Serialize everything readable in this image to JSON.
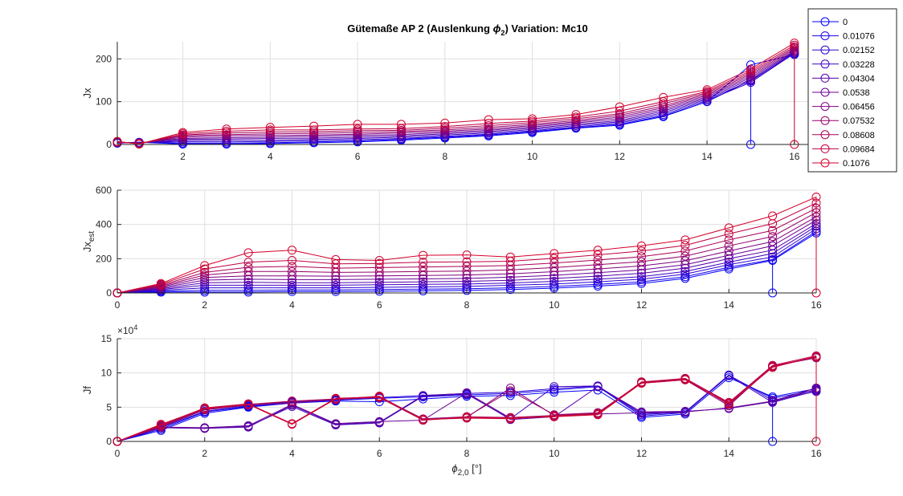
{
  "figure": {
    "title_main": "Gütemaße AP 2 (Auslenkung ",
    "title_sym": "ϕ",
    "title_sub": "2",
    "title_tail": ")  Variation: Mc10"
  },
  "legend": {
    "entries": [
      "0",
      "0.01076",
      "0.02152",
      "0.03228",
      "0.04304",
      "0.0538",
      "0.06456",
      "0.07532",
      "0.08608",
      "0.09684",
      "0.1076"
    ],
    "colors": [
      "#0000ff",
      "#1500ea",
      "#2b00d4",
      "#4000bf",
      "#5500aa",
      "#6a0095",
      "#800080",
      "#95006a",
      "#aa0055",
      "#bf0040",
      "#d4002b"
    ]
  },
  "chart_data": [
    {
      "type": "line",
      "ylabel": "Jx",
      "xlim": [
        0.5,
        16.5
      ],
      "ylim": [
        0,
        240
      ],
      "x_ticks": [
        2,
        4,
        6,
        8,
        10,
        12,
        14,
        16
      ],
      "y_ticks": [
        0,
        100,
        200
      ],
      "grid": true,
      "marker": "circle",
      "x": [
        0.5,
        1,
        2,
        3,
        4,
        5,
        6,
        7,
        8,
        9,
        10,
        11,
        12,
        13,
        14,
        15,
        16
      ],
      "series": [
        {
          "name": "0",
          "values": [
            3,
            5,
            1,
            1,
            2,
            4,
            6,
            10,
            15,
            20,
            28,
            38,
            45,
            65,
            100,
            186,
            210
          ],
          "drop_at": 15
        },
        {
          "name": "0.01076",
          "values": [
            3,
            5,
            3,
            3,
            4,
            6,
            8,
            12,
            17,
            22,
            30,
            39,
            47,
            67,
            100,
            150,
            212
          ]
        },
        {
          "name": "0.02152",
          "values": [
            4,
            5,
            6,
            6,
            7,
            9,
            11,
            14,
            19,
            24,
            32,
            41,
            50,
            70,
            103,
            145,
            213
          ]
        },
        {
          "name": "0.03228",
          "values": [
            4,
            4,
            9,
            10,
            10,
            12,
            14,
            17,
            22,
            27,
            35,
            44,
            53,
            74,
            106,
            148,
            215
          ]
        },
        {
          "name": "0.04304",
          "values": [
            4,
            4,
            12,
            13,
            14,
            15,
            17,
            20,
            25,
            30,
            38,
            47,
            56,
            78,
            109,
            152,
            217
          ]
        },
        {
          "name": "0.0538",
          "values": [
            5,
            3,
            14,
            16,
            17,
            19,
            21,
            23,
            28,
            33,
            41,
            50,
            60,
            82,
            112,
            156,
            219
          ]
        },
        {
          "name": "0.06456",
          "values": [
            5,
            3,
            17,
            20,
            21,
            22,
            24,
            27,
            31,
            36,
            44,
            53,
            64,
            86,
            115,
            160,
            222
          ]
        },
        {
          "name": "0.07532",
          "values": [
            6,
            2,
            20,
            23,
            25,
            26,
            28,
            30,
            34,
            40,
            47,
            56,
            68,
            90,
            118,
            164,
            225
          ]
        },
        {
          "name": "0.08608",
          "values": [
            6,
            2,
            22,
            27,
            29,
            30,
            32,
            33,
            38,
            44,
            51,
            60,
            72,
            95,
            121,
            168,
            228
          ]
        },
        {
          "name": "0.09684",
          "values": [
            7,
            1,
            25,
            31,
            34,
            34,
            36,
            37,
            42,
            49,
            55,
            64,
            78,
            100,
            124,
            172,
            232
          ]
        },
        {
          "name": "0.1076",
          "values": [
            7,
            1,
            28,
            36,
            40,
            43,
            47,
            47,
            50,
            58,
            60,
            70,
            88,
            110,
            128,
            176,
            237
          ],
          "drop_at": 16
        }
      ]
    },
    {
      "type": "line",
      "ylabel": "Jx",
      "ylabel_sub": "est",
      "xlim": [
        0,
        16
      ],
      "ylim": [
        0,
        600
      ],
      "x_ticks": [
        0,
        2,
        4,
        6,
        8,
        10,
        12,
        14,
        16
      ],
      "y_ticks": [
        0,
        200,
        400,
        600
      ],
      "grid": true,
      "marker": "circle",
      "x": [
        0,
        1,
        2,
        3,
        4,
        5,
        6,
        7,
        8,
        9,
        10,
        11,
        12,
        13,
        14,
        15,
        16
      ],
      "series": [
        {
          "name": "0",
          "values": [
            0,
            5,
            5,
            5,
            8,
            8,
            10,
            12,
            15,
            20,
            28,
            40,
            55,
            85,
            140,
            190,
            350
          ],
          "drop_at": 15
        },
        {
          "name": "0.01076",
          "values": [
            0,
            10,
            15,
            15,
            18,
            18,
            20,
            22,
            25,
            30,
            38,
            50,
            65,
            95,
            150,
            195,
            360
          ]
        },
        {
          "name": "0.02152",
          "values": [
            0,
            15,
            30,
            30,
            30,
            30,
            33,
            35,
            38,
            45,
            52,
            65,
            80,
            110,
            165,
            210,
            375
          ]
        },
        {
          "name": "0.03228",
          "values": [
            0,
            20,
            45,
            45,
            45,
            45,
            48,
            50,
            52,
            58,
            68,
            80,
            95,
            125,
            180,
            230,
            390
          ]
        },
        {
          "name": "0.04304",
          "values": [
            0,
            25,
            60,
            62,
            60,
            60,
            62,
            65,
            68,
            74,
            85,
            98,
            115,
            145,
            200,
            250,
            405
          ]
        },
        {
          "name": "0.0538",
          "values": [
            0,
            30,
            75,
            80,
            78,
            78,
            80,
            82,
            85,
            92,
            103,
            118,
            135,
            165,
            220,
            275,
            425
          ]
        },
        {
          "name": "0.06456",
          "values": [
            0,
            35,
            90,
            100,
            100,
            98,
            100,
            102,
            105,
            112,
            124,
            140,
            158,
            188,
            245,
            300,
            445
          ]
        },
        {
          "name": "0.07532",
          "values": [
            0,
            40,
            105,
            125,
            125,
            120,
            122,
            125,
            128,
            135,
            148,
            165,
            183,
            215,
            275,
            330,
            470
          ]
        },
        {
          "name": "0.08608",
          "values": [
            0,
            45,
            120,
            150,
            155,
            145,
            148,
            152,
            155,
            160,
            175,
            192,
            212,
            245,
            310,
            365,
            495
          ]
        },
        {
          "name": "0.09684",
          "values": [
            0,
            50,
            140,
            180,
            190,
            170,
            172,
            180,
            182,
            185,
            202,
            222,
            245,
            278,
            345,
            405,
            525
          ]
        },
        {
          "name": "0.1076",
          "values": [
            0,
            55,
            160,
            235,
            250,
            195,
            190,
            220,
            222,
            210,
            230,
            250,
            275,
            310,
            380,
            450,
            560
          ],
          "drop_at": 16
        }
      ]
    },
    {
      "type": "line",
      "ylabel": "Jf",
      "xlabel_sym": "ϕ",
      "xlabel_sub": "2,0",
      "xlabel_tail": " [°]",
      "exponent_base": "×10",
      "exponent_power": "4",
      "xlim": [
        0,
        16
      ],
      "ylim": [
        0,
        15
      ],
      "x_ticks": [
        0,
        2,
        4,
        6,
        8,
        10,
        12,
        14,
        16
      ],
      "y_ticks": [
        0,
        5,
        10,
        15
      ],
      "grid": true,
      "marker": "circle",
      "x": [
        0,
        1,
        2,
        3,
        4,
        5,
        6,
        7,
        8,
        9,
        10,
        11,
        12,
        13,
        14,
        15,
        16
      ],
      "series": [
        {
          "name": "0",
          "values": [
            0,
            1.6,
            4.1,
            5.0,
            5.6,
            5.9,
            5.8,
            6.2,
            6.6,
            6.7,
            7.2,
            7.5,
            3.5,
            4.0,
            9.3,
            6.5,
            7.7
          ],
          "drop_at": 15
        },
        {
          "name": "0.01076",
          "values": [
            0,
            1.8,
            4.3,
            5.1,
            5.7,
            6.0,
            6.3,
            6.5,
            6.8,
            7.0,
            7.5,
            8.0,
            3.7,
            4.2,
            9.6,
            6.3,
            7.5
          ]
        },
        {
          "name": "0.02152",
          "values": [
            0,
            2.0,
            4.4,
            5.2,
            5.8,
            6.1,
            6.4,
            6.7,
            7.0,
            7.2,
            7.7,
            8.1,
            3.9,
            4.3,
            9.7,
            6.0,
            7.3
          ]
        },
        {
          "name": "0.03228",
          "values": [
            0,
            2.0,
            1.9,
            2.2,
            5.1,
            2.4,
            2.7,
            6.6,
            6.9,
            3.3,
            8.0,
            8.1,
            4.1,
            4.2,
            9.6,
            5.7,
            7.4
          ]
        },
        {
          "name": "0.04304",
          "values": [
            0,
            2.0,
            1.9,
            2.1,
            5.3,
            2.5,
            2.8,
            6.7,
            7.0,
            3.2,
            3.6,
            8.0,
            4.3,
            4.4,
            4.8,
            5.8,
            7.6
          ]
        },
        {
          "name": "0.0538",
          "values": [
            0,
            2.1,
            2.0,
            2.3,
            5.4,
            2.6,
            2.9,
            3.1,
            7.1,
            3.4,
            3.7,
            4.0,
            4.2,
            4.3,
            4.9,
            5.9,
            7.8
          ]
        },
        {
          "name": "0.06456",
          "values": [
            0,
            2.1,
            4.6,
            5.3,
            5.6,
            6.1,
            6.6,
            3.2,
            3.5,
            7.8,
            3.8,
            4.1,
            8.5,
            9.0,
            5.2,
            11.0,
            12.2
          ]
        },
        {
          "name": "0.07532",
          "values": [
            0,
            2.2,
            4.7,
            5.4,
            5.8,
            6.2,
            6.5,
            3.3,
            3.6,
            7.4,
            3.9,
            4.2,
            8.6,
            9.1,
            5.4,
            10.9,
            12.4
          ]
        },
        {
          "name": "0.08608",
          "values": [
            0,
            2.3,
            4.8,
            5.4,
            5.9,
            6.2,
            6.4,
            3.1,
            3.6,
            3.5,
            3.8,
            4.1,
            8.6,
            9.2,
            5.6,
            11.0,
            12.3
          ]
        },
        {
          "name": "0.09684",
          "values": [
            0,
            2.4,
            4.9,
            5.5,
            2.6,
            6.3,
            6.5,
            3.2,
            3.4,
            3.3,
            3.7,
            4.0,
            8.7,
            9.2,
            5.7,
            11.1,
            12.5
          ]
        },
        {
          "name": "0.1076",
          "values": [
            0,
            2.5,
            4.8,
            5.4,
            2.5,
            6.2,
            6.6,
            3.1,
            3.5,
            3.4,
            3.6,
            3.9,
            8.5,
            9.0,
            5.5,
            10.8,
            12.4
          ],
          "drop_at": 16
        }
      ]
    }
  ]
}
